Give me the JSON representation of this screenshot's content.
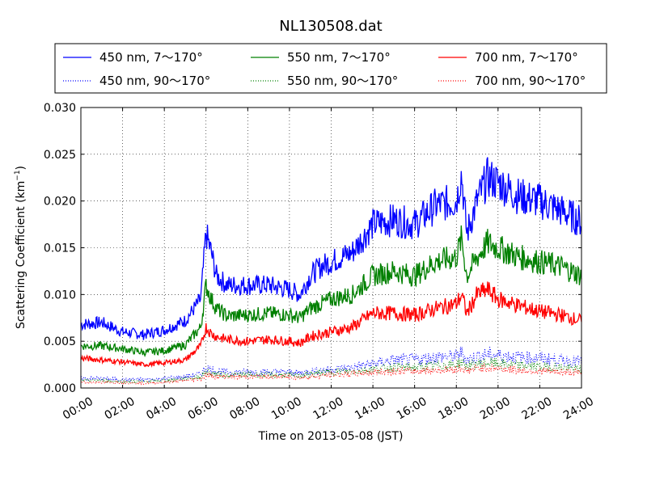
{
  "chart_data": {
    "type": "line",
    "title": "NL130508.dat",
    "xlabel": "Time on 2013-05-08 (JST)",
    "ylabel": "Scattering Coefficient (km",
    "ylabel_superscript": "−1",
    "ylabel_suffix": ")",
    "xlim": [
      "00:00",
      "24:00"
    ],
    "ylim": [
      0,
      0.03
    ],
    "grid": true,
    "legend_position": "top-center, above plot",
    "x_ticks": [
      "00:00",
      "02:00",
      "04:00",
      "06:00",
      "08:00",
      "10:00",
      "12:00",
      "14:00",
      "16:00",
      "18:00",
      "20:00",
      "22:00",
      "24:00"
    ],
    "y_ticks": [
      "0.000",
      "0.005",
      "0.010",
      "0.015",
      "0.020",
      "0.025",
      "0.030"
    ],
    "x": [
      "00:00",
      "01:00",
      "02:00",
      "03:00",
      "04:00",
      "05:00",
      "05:45",
      "06:00",
      "06:15",
      "06:30",
      "07:00",
      "08:00",
      "09:00",
      "10:00",
      "10:30",
      "11:00",
      "11:30",
      "12:00",
      "13:00",
      "14:00",
      "15:00",
      "16:00",
      "17:00",
      "18:00",
      "18:15",
      "18:30",
      "19:00",
      "19:30",
      "20:00",
      "21:00",
      "22:00",
      "23:00",
      "24:00"
    ],
    "series": [
      {
        "name": "450 nm, 7～170°",
        "color": "#0000ff",
        "style": "solid",
        "values": [
          0.0068,
          0.007,
          0.006,
          0.0057,
          0.0062,
          0.0072,
          0.0095,
          0.0165,
          0.0145,
          0.012,
          0.011,
          0.011,
          0.011,
          0.0105,
          0.01,
          0.012,
          0.013,
          0.0135,
          0.0145,
          0.0175,
          0.018,
          0.0175,
          0.0195,
          0.02,
          0.023,
          0.0165,
          0.02,
          0.0225,
          0.022,
          0.0205,
          0.02,
          0.019,
          0.0178
        ]
      },
      {
        "name": "550 nm, 7～170°",
        "color": "#008000",
        "style": "solid",
        "values": [
          0.0045,
          0.0045,
          0.0042,
          0.0038,
          0.004,
          0.0046,
          0.0065,
          0.011,
          0.0095,
          0.0085,
          0.0077,
          0.0078,
          0.008,
          0.0078,
          0.0075,
          0.0085,
          0.009,
          0.0095,
          0.01,
          0.012,
          0.0125,
          0.012,
          0.0135,
          0.014,
          0.016,
          0.012,
          0.014,
          0.0155,
          0.015,
          0.014,
          0.0135,
          0.013,
          0.012
        ]
      },
      {
        "name": "700 nm, 7～170°",
        "color": "#ff0000",
        "style": "solid",
        "values": [
          0.0032,
          0.003,
          0.0028,
          0.0025,
          0.0027,
          0.003,
          0.0045,
          0.0065,
          0.0058,
          0.0055,
          0.0052,
          0.005,
          0.0052,
          0.005,
          0.0048,
          0.0055,
          0.0058,
          0.006,
          0.0065,
          0.008,
          0.008,
          0.0078,
          0.0085,
          0.009,
          0.01,
          0.008,
          0.01,
          0.0105,
          0.0095,
          0.0088,
          0.0082,
          0.0078,
          0.0072
        ]
      },
      {
        "name": "450 nm, 90～170°",
        "color": "#0000ff",
        "style": "dotted",
        "values": [
          0.001,
          0.001,
          0.0009,
          0.0009,
          0.001,
          0.0012,
          0.0015,
          0.0022,
          0.002,
          0.0018,
          0.0017,
          0.0017,
          0.0017,
          0.0017,
          0.0016,
          0.0018,
          0.0019,
          0.002,
          0.0022,
          0.0026,
          0.003,
          0.003,
          0.0033,
          0.0034,
          0.0038,
          0.003,
          0.0034,
          0.0036,
          0.0035,
          0.0033,
          0.0032,
          0.003,
          0.0028
        ]
      },
      {
        "name": "550 nm, 90～170°",
        "color": "#008000",
        "style": "dotted",
        "values": [
          0.0008,
          0.0008,
          0.0007,
          0.0007,
          0.0008,
          0.001,
          0.0012,
          0.0017,
          0.0016,
          0.0015,
          0.0014,
          0.0014,
          0.0014,
          0.0014,
          0.0013,
          0.0015,
          0.0016,
          0.0017,
          0.0018,
          0.002,
          0.0022,
          0.0022,
          0.0024,
          0.0025,
          0.0028,
          0.0023,
          0.0026,
          0.0027,
          0.0026,
          0.0024,
          0.0023,
          0.0022,
          0.002
        ]
      },
      {
        "name": "700 nm, 90～170°",
        "color": "#ff0000",
        "style": "dotted",
        "values": [
          0.0006,
          0.0006,
          0.0006,
          0.0005,
          0.0006,
          0.0008,
          0.001,
          0.0014,
          0.0013,
          0.0012,
          0.0012,
          0.0012,
          0.0012,
          0.0012,
          0.0011,
          0.0012,
          0.0013,
          0.0014,
          0.0015,
          0.0017,
          0.0018,
          0.0018,
          0.0019,
          0.002,
          0.0022,
          0.0018,
          0.0021,
          0.0022,
          0.0021,
          0.0019,
          0.0018,
          0.0017,
          0.0016
        ]
      }
    ]
  }
}
